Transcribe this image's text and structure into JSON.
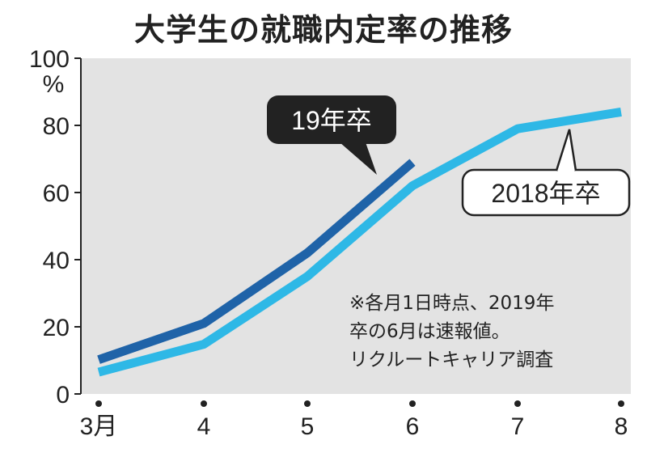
{
  "title": "大学生の就職内定率の推移",
  "chart_data": {
    "type": "line",
    "categories": [
      "3月",
      "4",
      "5",
      "6",
      "7",
      "8"
    ],
    "yunit": "%",
    "ylim": [
      0,
      100
    ],
    "yticks": [
      0,
      20,
      40,
      60,
      80,
      100
    ],
    "series": [
      {
        "name": "19年卒",
        "values": [
          10.2,
          21.0,
          42.0,
          69.0,
          null,
          null
        ],
        "color": "#1f63a8"
      },
      {
        "name": "2018年卒",
        "values": [
          6.5,
          14.8,
          35.0,
          62.0,
          79.0,
          84.0
        ],
        "color": "#2eb8e6"
      }
    ],
    "grid": "alternating horizontal bands"
  },
  "note": [
    "※各月1日時点、2019年",
    "卒の6月は速報値。",
    "リクルートキャリア調査"
  ]
}
